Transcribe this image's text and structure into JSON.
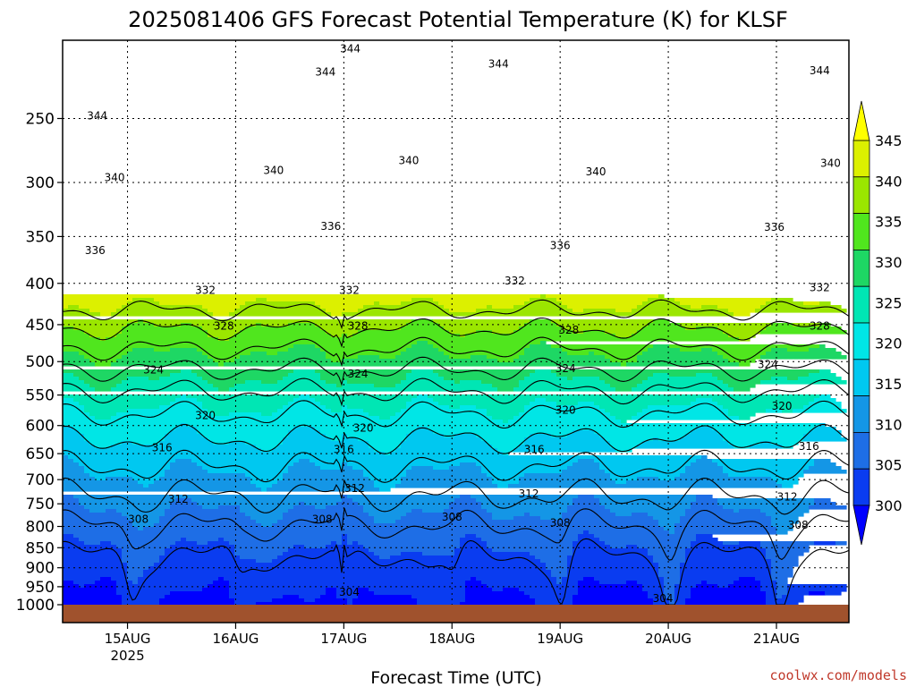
{
  "chart_data": {
    "type": "contour",
    "title": "2025081406 GFS Forecast Potential Temperature (K) for KLSF",
    "xlabel": "Forecast Time (UTC)",
    "ylabel": "",
    "y_scale": "log",
    "y_reversed": true,
    "ylim": [
      1000,
      200
    ],
    "xlim": [
      -0.6,
      6.67
    ],
    "y_ticks": [
      250,
      300,
      350,
      400,
      450,
      500,
      550,
      600,
      650,
      700,
      750,
      800,
      850,
      900,
      950,
      1000
    ],
    "x_ticks": [
      {
        "x": 0,
        "label": "15AUG",
        "sublabel": "2025"
      },
      {
        "x": 1,
        "label": "16AUG",
        "sublabel": ""
      },
      {
        "x": 2,
        "label": "17AUG",
        "sublabel": ""
      },
      {
        "x": 3,
        "label": "18AUG",
        "sublabel": ""
      },
      {
        "x": 4,
        "label": "19AUG",
        "sublabel": ""
      },
      {
        "x": 5,
        "label": "20AUG",
        "sublabel": ""
      },
      {
        "x": 6,
        "label": "21AUG",
        "sublabel": ""
      }
    ],
    "grid": true,
    "colorbar": {
      "levels": [
        300,
        305,
        310,
        315,
        320,
        325,
        330,
        335,
        340,
        345
      ],
      "colors": [
        "#0000ff",
        "#0a3cf0",
        "#1e6ee6",
        "#1496e6",
        "#00c8f0",
        "#00e6e6",
        "#00e6b4",
        "#1ed764",
        "#50e61e",
        "#9be600",
        "#dcf000",
        "#ffff00"
      ]
    },
    "contour_levels": [
      304,
      308,
      312,
      316,
      320,
      324,
      328,
      332,
      336,
      340,
      344
    ],
    "contour_labels": [
      {
        "value": "344",
        "x": -0.28,
        "p": 248
      },
      {
        "value": "344",
        "x": 1.83,
        "p": 219
      },
      {
        "value": "344",
        "x": 2.06,
        "p": 205
      },
      {
        "value": "344",
        "x": 3.43,
        "p": 214
      },
      {
        "value": "344",
        "x": 6.4,
        "p": 218
      },
      {
        "value": "340",
        "x": -0.12,
        "p": 296
      },
      {
        "value": "340",
        "x": 1.35,
        "p": 290
      },
      {
        "value": "340",
        "x": 2.6,
        "p": 282
      },
      {
        "value": "340",
        "x": 4.33,
        "p": 291
      },
      {
        "value": "340",
        "x": 6.5,
        "p": 284
      },
      {
        "value": "336",
        "x": 1.88,
        "p": 340
      },
      {
        "value": "336",
        "x": -0.3,
        "p": 364
      },
      {
        "value": "336",
        "x": 4.0,
        "p": 359
      },
      {
        "value": "336",
        "x": 5.98,
        "p": 341
      },
      {
        "value": "332",
        "x": 0.72,
        "p": 408
      },
      {
        "value": "332",
        "x": 2.05,
        "p": 408
      },
      {
        "value": "332",
        "x": 3.58,
        "p": 397
      },
      {
        "value": "332",
        "x": 6.4,
        "p": 405
      },
      {
        "value": "328",
        "x": 0.89,
        "p": 452
      },
      {
        "value": "328",
        "x": 2.13,
        "p": 452
      },
      {
        "value": "328",
        "x": 4.08,
        "p": 457
      },
      {
        "value": "328",
        "x": 6.4,
        "p": 452
      },
      {
        "value": "324",
        "x": 0.24,
        "p": 512
      },
      {
        "value": "324",
        "x": 2.13,
        "p": 518
      },
      {
        "value": "324",
        "x": 4.05,
        "p": 510
      },
      {
        "value": "324",
        "x": 5.92,
        "p": 504
      },
      {
        "value": "320",
        "x": 0.72,
        "p": 583
      },
      {
        "value": "320",
        "x": 2.18,
        "p": 604
      },
      {
        "value": "320",
        "x": 4.05,
        "p": 574
      },
      {
        "value": "320",
        "x": 6.05,
        "p": 568
      },
      {
        "value": "316",
        "x": 0.32,
        "p": 639
      },
      {
        "value": "316",
        "x": 2.0,
        "p": 642
      },
      {
        "value": "316",
        "x": 3.76,
        "p": 642
      },
      {
        "value": "316",
        "x": 6.3,
        "p": 637
      },
      {
        "value": "312",
        "x": 0.47,
        "p": 740
      },
      {
        "value": "312",
        "x": 2.1,
        "p": 718
      },
      {
        "value": "312",
        "x": 3.71,
        "p": 729
      },
      {
        "value": "312",
        "x": 6.1,
        "p": 735
      },
      {
        "value": "308",
        "x": 0.1,
        "p": 784
      },
      {
        "value": "308",
        "x": 1.8,
        "p": 784
      },
      {
        "value": "308",
        "x": 3.0,
        "p": 779
      },
      {
        "value": "308",
        "x": 4.0,
        "p": 792
      },
      {
        "value": "308",
        "x": 6.2,
        "p": 797
      },
      {
        "value": "304",
        "x": 2.05,
        "p": 965
      },
      {
        "value": "304",
        "x": 4.95,
        "p": 982
      }
    ]
  },
  "credit": "coolwx.com/models"
}
